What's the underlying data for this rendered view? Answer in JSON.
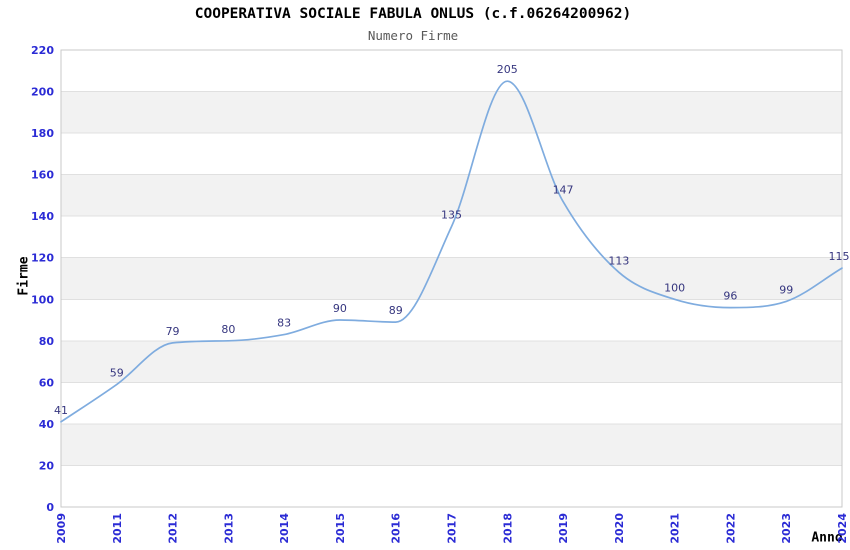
{
  "chart_data": {
    "type": "line",
    "title": "COOPERATIVA SOCIALE FABULA ONLUS (c.f.06264200962)",
    "subtitle": "Numero Firme",
    "xlabel": "Anno",
    "ylabel": "Firme",
    "categories": [
      "2009",
      "2011",
      "2012",
      "2013",
      "2014",
      "2015",
      "2016",
      "2017",
      "2018",
      "2019",
      "2020",
      "2021",
      "2022",
      "2023",
      "2024"
    ],
    "values": [
      41,
      59,
      79,
      80,
      83,
      90,
      89,
      135,
      205,
      147,
      113,
      100,
      96,
      99,
      115
    ],
    "ylim": [
      0,
      220
    ],
    "ytick_step": 20,
    "yticks": [
      0,
      20,
      40,
      60,
      80,
      100,
      120,
      140,
      160,
      180,
      200,
      220
    ],
    "grid": "horizontal",
    "legend": "none",
    "alternating_bands": true,
    "colors": {
      "line": "#7facdf",
      "value_labels": "#36367f",
      "tick_labels": "#2b2bd5",
      "band_fill": "#f2f2f2",
      "gridline": "#e0e0e0",
      "plot_border": "#c9c9c9",
      "title": "#000000",
      "subtitle": "#595959",
      "axis_title": "#000000"
    }
  }
}
